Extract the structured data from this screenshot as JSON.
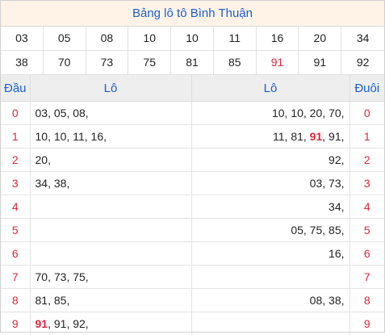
{
  "title": "Bảng lô tô Bình Thuận",
  "numbers": [
    {
      "v": "03",
      "hl": false
    },
    {
      "v": "05",
      "hl": false
    },
    {
      "v": "08",
      "hl": false
    },
    {
      "v": "10",
      "hl": false
    },
    {
      "v": "10",
      "hl": false
    },
    {
      "v": "11",
      "hl": false
    },
    {
      "v": "16",
      "hl": false
    },
    {
      "v": "20",
      "hl": false
    },
    {
      "v": "34",
      "hl": false
    },
    {
      "v": "38",
      "hl": false
    },
    {
      "v": "70",
      "hl": false
    },
    {
      "v": "73",
      "hl": false
    },
    {
      "v": "75",
      "hl": false
    },
    {
      "v": "81",
      "hl": false
    },
    {
      "v": "85",
      "hl": false
    },
    {
      "v": "91",
      "hl": true
    },
    {
      "v": "91",
      "hl": false
    },
    {
      "v": "92",
      "hl": false
    }
  ],
  "headers": {
    "dau": "Đầu",
    "lo_left": "Lô",
    "lo_right": "Lô",
    "duoi": "Đuôi"
  },
  "rows": [
    {
      "dau": "0",
      "left": [
        {
          "t": "03"
        },
        {
          "t": "05"
        },
        {
          "t": "08"
        }
      ],
      "right": [
        {
          "t": "10"
        },
        {
          "t": "10"
        },
        {
          "t": "20"
        },
        {
          "t": "70"
        }
      ],
      "duoi": "0"
    },
    {
      "dau": "1",
      "left": [
        {
          "t": "10"
        },
        {
          "t": "10"
        },
        {
          "t": "11"
        },
        {
          "t": "16"
        }
      ],
      "right": [
        {
          "t": "11"
        },
        {
          "t": "81"
        },
        {
          "t": "91",
          "hl": true
        },
        {
          "t": "91"
        }
      ],
      "duoi": "1"
    },
    {
      "dau": "2",
      "left": [
        {
          "t": "20"
        }
      ],
      "right": [
        {
          "t": "92"
        }
      ],
      "duoi": "2"
    },
    {
      "dau": "3",
      "left": [
        {
          "t": "34"
        },
        {
          "t": "38"
        }
      ],
      "right": [
        {
          "t": "03"
        },
        {
          "t": "73"
        }
      ],
      "duoi": "3"
    },
    {
      "dau": "4",
      "left": [],
      "right": [
        {
          "t": "34"
        }
      ],
      "duoi": "4"
    },
    {
      "dau": "5",
      "left": [],
      "right": [
        {
          "t": "05"
        },
        {
          "t": "75"
        },
        {
          "t": "85"
        }
      ],
      "duoi": "5"
    },
    {
      "dau": "6",
      "left": [],
      "right": [
        {
          "t": "16"
        }
      ],
      "duoi": "6"
    },
    {
      "dau": "7",
      "left": [
        {
          "t": "70"
        },
        {
          "t": "73"
        },
        {
          "t": "75"
        }
      ],
      "right": [],
      "duoi": "7"
    },
    {
      "dau": "8",
      "left": [
        {
          "t": "81"
        },
        {
          "t": "85"
        }
      ],
      "right": [
        {
          "t": "08"
        },
        {
          "t": "38"
        }
      ],
      "duoi": "8"
    },
    {
      "dau": "9",
      "left": [
        {
          "t": "91",
          "hl": true
        },
        {
          "t": "91"
        },
        {
          "t": "92"
        }
      ],
      "right": [],
      "duoi": "9"
    }
  ],
  "colors": {
    "title_blue": "#1c5fd0",
    "accent_red": "#d8283a",
    "title_bg": "#fff3e8",
    "header_bg": "#eeeeee"
  }
}
